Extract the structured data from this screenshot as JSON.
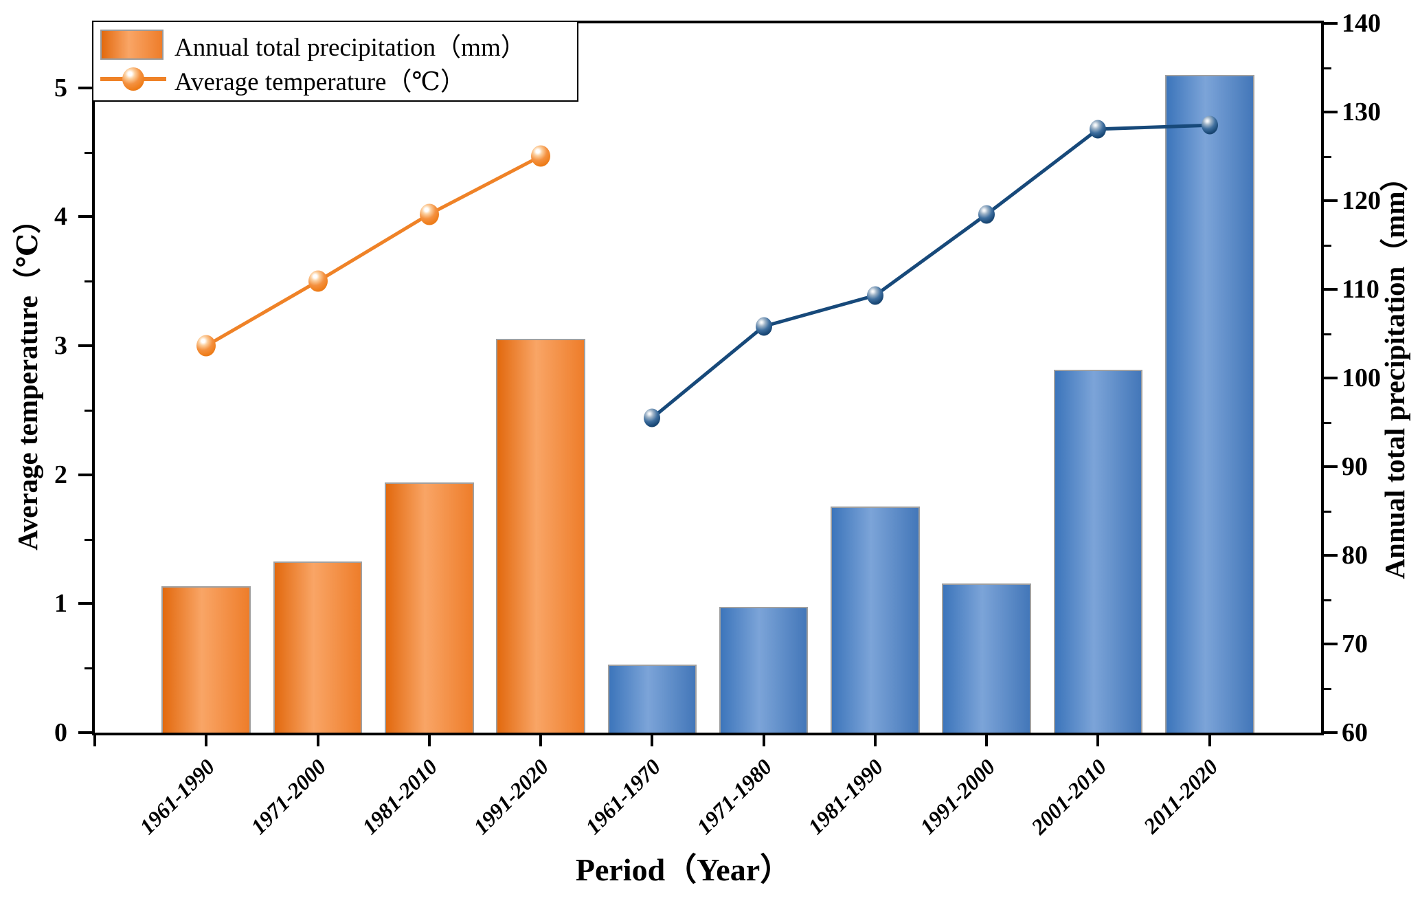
{
  "legend": {
    "items": [
      {
        "label": "Annual total precipitation（mm）",
        "swatch": "orange-bar"
      },
      {
        "label": "Average temperature（℃）",
        "swatch": "orange-line-marker"
      }
    ]
  },
  "axes": {
    "x": {
      "title": "Period（Year）",
      "categories": [
        "1961-1990",
        "1971-2000",
        "1981-2010",
        "1991-2020",
        "1961-1970",
        "1971-1980",
        "1981-1990",
        "1991-2000",
        "2001-2010",
        "2011-2020"
      ]
    },
    "left": {
      "title": "Average temperature（℃）",
      "ticks": [
        "0",
        "1",
        "2",
        "3",
        "4",
        "5"
      ],
      "minor_step": 0.5,
      "range": [
        0,
        5.5
      ]
    },
    "right": {
      "title": "Annual total precipitation（mm）",
      "ticks": [
        "60",
        "70",
        "80",
        "90",
        "100",
        "110",
        "120",
        "130",
        "140"
      ],
      "minor_step": 5,
      "range": [
        60,
        140
      ]
    }
  },
  "chart_data": {
    "type": "bar",
    "categories": [
      "1961-1990",
      "1971-2000",
      "1981-2010",
      "1991-2020",
      "1961-1970",
      "1971-1980",
      "1981-1990",
      "1991-2000",
      "2001-2010",
      "2011-2020"
    ],
    "series": [
      {
        "name": "Annual total precipitation（mm）",
        "type": "bar",
        "axis": "right",
        "values": [
          76.5,
          79.3,
          88.2,
          104.4,
          67.7,
          74.2,
          85.5,
          76.8,
          100.9,
          134.2
        ],
        "color_groups": [
          {
            "from": 0,
            "to": 3,
            "color_key": "orange_bar"
          },
          {
            "from": 4,
            "to": 9,
            "color_key": "blue_bar"
          }
        ]
      },
      {
        "name": "Average temperature（℃）",
        "type": "line",
        "axis": "left",
        "values": [
          3.0,
          3.5,
          4.02,
          4.47,
          2.44,
          3.15,
          3.39,
          4.02,
          4.68,
          4.71
        ],
        "segments": [
          {
            "from": 0,
            "to": 3,
            "color_key": "orange_line"
          },
          {
            "from": 4,
            "to": 9,
            "color_key": "navy_line"
          }
        ]
      }
    ],
    "xlabel": "Period（Year）",
    "ylabel_left": "Average temperature（℃）",
    "ylabel_right": "Annual total precipitation（mm）",
    "ylim_left": [
      0,
      5.5
    ],
    "ylim_right": [
      60,
      140
    ],
    "grid": false,
    "legend_position": "top-left"
  },
  "colors": {
    "orange_line": "#ef8227",
    "navy_line": "#17497a",
    "orange_bar_gradient": [
      "#e2690e",
      "#f9a566",
      "#ee7d2a"
    ],
    "blue_bar_gradient": [
      "#3c75bb",
      "#7ca4d8",
      "#4377b9"
    ],
    "bar_edge": "#a0a0a0",
    "axis": "#000000",
    "background": "#ffffff"
  }
}
